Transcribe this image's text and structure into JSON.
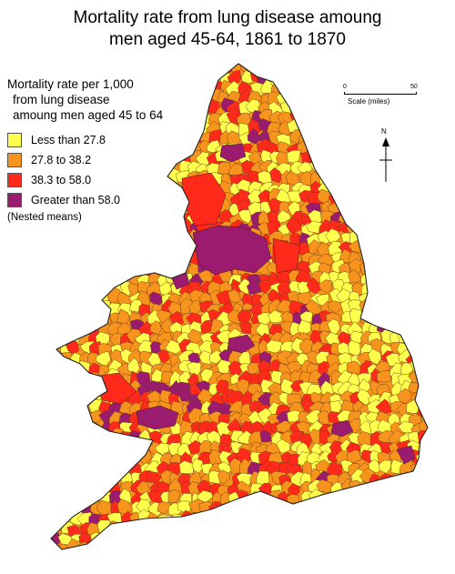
{
  "title": {
    "line1": "Mortality rate from lung disease amoung",
    "line2": "men aged 45-64, 1861 to 1870"
  },
  "legend": {
    "heading_line1": "Mortality rate per 1,000",
    "heading_line2": "from lung disease",
    "heading_line3": "amoung men aged 45 to 64",
    "items": [
      {
        "label": "Less than 27.8",
        "color": "#ffff4d"
      },
      {
        "label": "27.8 to 38.2",
        "color": "#f7941d"
      },
      {
        "label": "38.3 to 58.0",
        "color": "#ff2a1a"
      },
      {
        "label": "Greater than 58.0",
        "color": "#9b1c6e"
      }
    ],
    "note": "(Nested means)"
  },
  "scale": {
    "tick_start": "0",
    "tick_end": "50",
    "label": "Scale (miles)"
  },
  "north": {
    "label": "N"
  }
}
